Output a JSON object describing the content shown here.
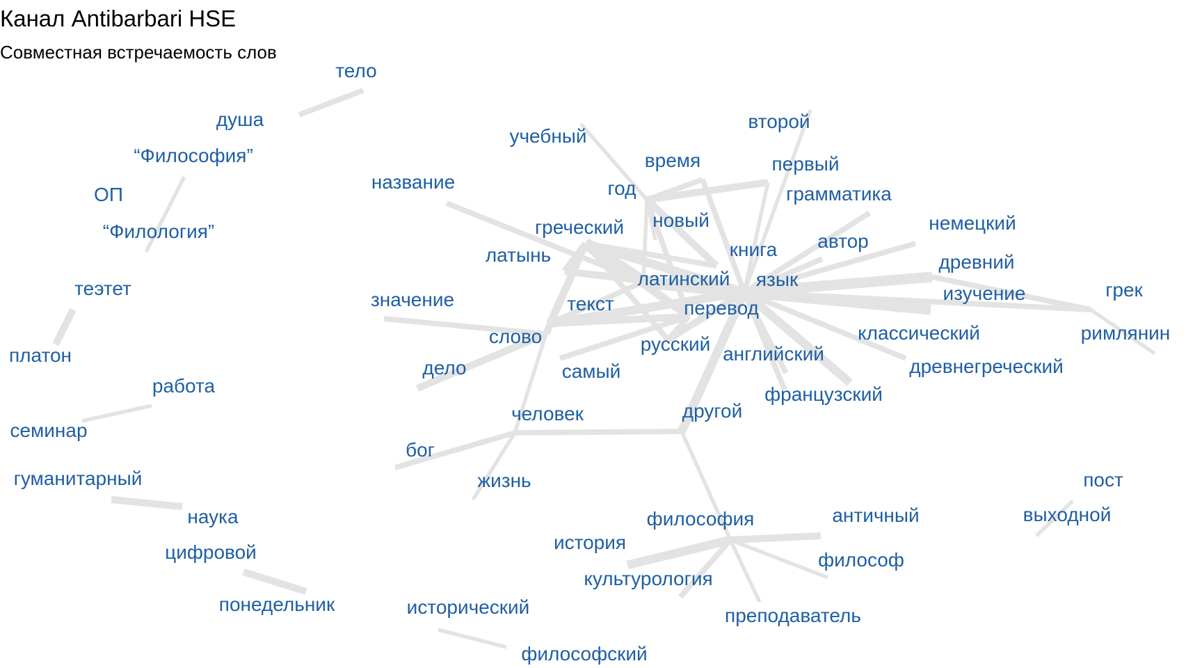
{
  "title": "Канал Antibarbari HSE",
  "subtitle": "Совместная встречаемость слов",
  "colors": {
    "label": "#1f5fa3",
    "edge": "#e3e3e3",
    "title": "#000000",
    "background": "#ffffff"
  },
  "nodes": [
    {
      "id": "telo",
      "label": "тело"
    },
    {
      "id": "dusha",
      "label": "душа"
    },
    {
      "id": "filosofia_q",
      "label": "“Философия”"
    },
    {
      "id": "op",
      "label": "ОП"
    },
    {
      "id": "filologia_q",
      "label": "“Филология”"
    },
    {
      "id": "teetet",
      "label": "теэтет"
    },
    {
      "id": "platon",
      "label": "платон"
    },
    {
      "id": "rabota",
      "label": "работа"
    },
    {
      "id": "seminar",
      "label": "семинар"
    },
    {
      "id": "gumanitarny",
      "label": "гуманитарный"
    },
    {
      "id": "nauka",
      "label": "наука"
    },
    {
      "id": "cifrovoy",
      "label": "цифровой"
    },
    {
      "id": "ponedelnik",
      "label": "понедельник"
    },
    {
      "id": "uchebny",
      "label": "учебный"
    },
    {
      "id": "nazvanie",
      "label": "название"
    },
    {
      "id": "vremya",
      "label": "время"
    },
    {
      "id": "god",
      "label": "год"
    },
    {
      "id": "vtoroy",
      "label": "второй"
    },
    {
      "id": "perviy",
      "label": "первый"
    },
    {
      "id": "grammatika",
      "label": "грамматика"
    },
    {
      "id": "grecheskiy",
      "label": "греческий"
    },
    {
      "id": "noviy",
      "label": "новый"
    },
    {
      "id": "nemeckiy",
      "label": "немецкий"
    },
    {
      "id": "latyn",
      "label": "латынь"
    },
    {
      "id": "kniga",
      "label": "книга"
    },
    {
      "id": "avtor",
      "label": "автор"
    },
    {
      "id": "drevniy",
      "label": "древний"
    },
    {
      "id": "latinskiy",
      "label": "латинский"
    },
    {
      "id": "yazyk",
      "label": "язык"
    },
    {
      "id": "izuchenie",
      "label": "изучение"
    },
    {
      "id": "grek",
      "label": "грек"
    },
    {
      "id": "znachenie",
      "label": "значение"
    },
    {
      "id": "tekst",
      "label": "текст"
    },
    {
      "id": "perevod",
      "label": "перевод"
    },
    {
      "id": "slovo",
      "label": "слово"
    },
    {
      "id": "klassicheskiy",
      "label": "классический"
    },
    {
      "id": "rimlyanin",
      "label": "римлянин"
    },
    {
      "id": "russkiy",
      "label": "русский"
    },
    {
      "id": "angliyskiy",
      "label": "английский"
    },
    {
      "id": "delo",
      "label": "дело"
    },
    {
      "id": "samiy",
      "label": "самый"
    },
    {
      "id": "drevnegrecheskiy",
      "label": "древнегреческий"
    },
    {
      "id": "francuzskiy",
      "label": "французский"
    },
    {
      "id": "chelovek",
      "label": "человек"
    },
    {
      "id": "drugoy",
      "label": "другой"
    },
    {
      "id": "bog",
      "label": "бог"
    },
    {
      "id": "zhizn",
      "label": "жизнь"
    },
    {
      "id": "post",
      "label": "пост"
    },
    {
      "id": "vyhodnoy",
      "label": "выходной"
    },
    {
      "id": "filosofiya",
      "label": "философия"
    },
    {
      "id": "antichniy",
      "label": "античный"
    },
    {
      "id": "istoriya",
      "label": "история"
    },
    {
      "id": "filosof",
      "label": "философ"
    },
    {
      "id": "kulturologiya",
      "label": "культурология"
    },
    {
      "id": "prepodavatel",
      "label": "преподаватель"
    },
    {
      "id": "istoricheskiy",
      "label": "исторический"
    },
    {
      "id": "filosofskiy",
      "label": "философский"
    }
  ],
  "edges": [
    {
      "from": "telo",
      "to": "dusha",
      "weight": 2
    },
    {
      "from": "filosofia_q",
      "to": "filologia_q",
      "weight": 1
    },
    {
      "from": "teetet",
      "to": "platon",
      "weight": 3
    },
    {
      "from": "rabota",
      "to": "seminar",
      "weight": 1
    },
    {
      "from": "gumanitarny",
      "to": "nauka",
      "weight": 3
    },
    {
      "from": "cifrovoy",
      "to": "ponedelnik",
      "weight": 3
    },
    {
      "from": "istoricheskiy",
      "to": "filosofskiy",
      "weight": 1
    },
    {
      "from": "post",
      "to": "vyhodnoy",
      "weight": 1
    },
    {
      "from": "uchebny",
      "to": "god",
      "weight": 1
    },
    {
      "from": "nazvanie",
      "to": "latinskiy",
      "weight": 2
    },
    {
      "from": "vtoroy",
      "to": "yazyk",
      "weight": 1
    },
    {
      "from": "god",
      "to": "vremya",
      "weight": 2
    },
    {
      "from": "god",
      "to": "perviy",
      "weight": 3
    },
    {
      "from": "god",
      "to": "noviy",
      "weight": 1
    },
    {
      "from": "god",
      "to": "kniga",
      "weight": 3
    },
    {
      "from": "god",
      "to": "perevod",
      "weight": 2
    },
    {
      "from": "god",
      "to": "latinskiy",
      "weight": 1
    },
    {
      "from": "perviy",
      "to": "yazyk",
      "weight": 1
    },
    {
      "from": "vremya",
      "to": "yazyk",
      "weight": 2
    },
    {
      "from": "grammatika",
      "to": "yazyk",
      "weight": 2
    },
    {
      "from": "grecheskiy",
      "to": "latinskiy",
      "weight": 6
    },
    {
      "from": "grecheskiy",
      "to": "latyn",
      "weight": 3
    },
    {
      "from": "grecheskiy",
      "to": "yazyk",
      "weight": 4
    },
    {
      "from": "grecheskiy",
      "to": "tekst",
      "weight": 3
    },
    {
      "from": "grecheskiy",
      "to": "slovo",
      "weight": 3
    },
    {
      "from": "grecheskiy",
      "to": "perevod",
      "weight": 3
    },
    {
      "from": "grecheskiy",
      "to": "kniga",
      "weight": 2
    },
    {
      "from": "grecheskiy",
      "to": "russkiy",
      "weight": 2
    },
    {
      "from": "latyn",
      "to": "yazyk",
      "weight": 3
    },
    {
      "from": "latinskiy",
      "to": "yazyk",
      "weight": 6
    },
    {
      "from": "latinskiy",
      "to": "tekst",
      "weight": 2
    },
    {
      "from": "latinskiy",
      "to": "perevod",
      "weight": 3
    },
    {
      "from": "yazyk",
      "to": "izuchenie",
      "weight": 5
    },
    {
      "from": "yazyk",
      "to": "drevniy",
      "weight": 5
    },
    {
      "from": "yazyk",
      "to": "nemeckiy",
      "weight": 2
    },
    {
      "from": "yazyk",
      "to": "avtor",
      "weight": 2
    },
    {
      "from": "yazyk",
      "to": "grek",
      "weight": 2
    },
    {
      "from": "yazyk",
      "to": "klassicheskiy",
      "weight": 2
    },
    {
      "from": "yazyk",
      "to": "drevnegrecheskiy",
      "weight": 4
    },
    {
      "from": "yazyk",
      "to": "francuzskiy",
      "weight": 2
    },
    {
      "from": "yazyk",
      "to": "angliyskiy",
      "weight": 2
    },
    {
      "from": "yazyk",
      "to": "russkiy",
      "weight": 3
    },
    {
      "from": "yazyk",
      "to": "drugoy",
      "weight": 4
    },
    {
      "from": "yazyk",
      "to": "tekst",
      "weight": 4
    },
    {
      "from": "drevniy",
      "to": "grek",
      "weight": 2
    },
    {
      "from": "grek",
      "to": "rimlyanin",
      "weight": 1
    },
    {
      "from": "perevod",
      "to": "tekst",
      "weight": 3
    },
    {
      "from": "perevod",
      "to": "russkiy",
      "weight": 2
    },
    {
      "from": "perevod",
      "to": "samiy",
      "weight": 2
    },
    {
      "from": "znachenie",
      "to": "slovo",
      "weight": 2
    },
    {
      "from": "slovo",
      "to": "delo",
      "weight": 3
    },
    {
      "from": "slovo",
      "to": "chelovek",
      "weight": 1
    },
    {
      "from": "chelovek",
      "to": "bog",
      "weight": 2
    },
    {
      "from": "chelovek",
      "to": "zhizn",
      "weight": 1
    },
    {
      "from": "chelovek",
      "to": "drugoy",
      "weight": 2
    },
    {
      "from": "drugoy",
      "to": "filosofiya",
      "weight": 1
    },
    {
      "from": "filosofiya",
      "to": "antichniy",
      "weight": 3
    },
    {
      "from": "filosofiya",
      "to": "istoriya",
      "weight": 4
    },
    {
      "from": "filosofiya",
      "to": "filosof",
      "weight": 1
    },
    {
      "from": "filosofiya",
      "to": "kulturologiya",
      "weight": 2
    },
    {
      "from": "filosofiya",
      "to": "prepodavatel",
      "weight": 1
    }
  ]
}
